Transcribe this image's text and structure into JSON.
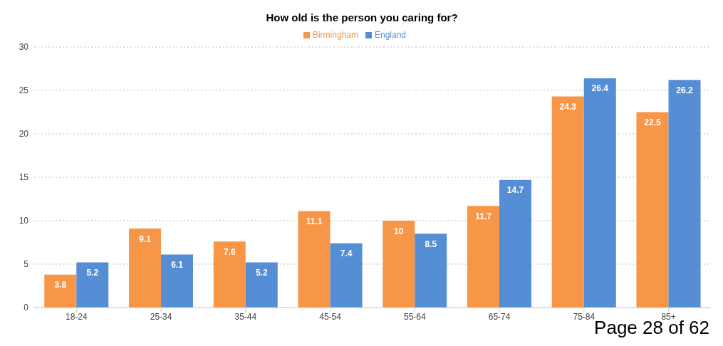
{
  "chart_data": {
    "type": "bar",
    "title": "How old is the person you caring for?",
    "categories": [
      "18-24",
      "25-34",
      "35-44",
      "45-54",
      "55-64",
      "65-74",
      "75-84",
      "85+"
    ],
    "series": [
      {
        "name": "Birmingham",
        "color": "#f79646",
        "values": [
          3.8,
          9.1,
          7.6,
          11.1,
          10,
          11.7,
          24.3,
          22.5
        ]
      },
      {
        "name": "England",
        "color": "#558ed5",
        "values": [
          5.2,
          6.1,
          5.2,
          7.4,
          8.5,
          14.7,
          26.4,
          26.2
        ]
      }
    ],
    "ylim": [
      0,
      30
    ],
    "yticks": [
      0,
      5,
      10,
      15,
      20,
      25,
      30
    ],
    "grid": "y",
    "legend": "top",
    "data_labels": true,
    "annotations": [
      "Page 28 of 62"
    ]
  }
}
